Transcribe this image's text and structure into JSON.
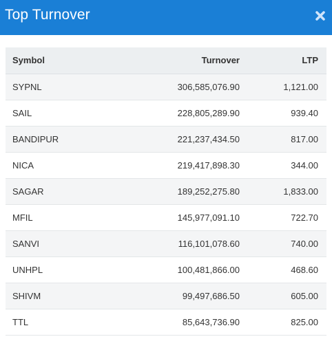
{
  "modal": {
    "title": "Top Turnover",
    "close_icon": "close-icon",
    "header_color": "#1a7fd6"
  },
  "table": {
    "columns": {
      "symbol": "Symbol",
      "turnover": "Turnover",
      "ltp": "LTP"
    },
    "rows": [
      {
        "symbol": "SYPNL",
        "turnover": "306,585,076.90",
        "ltp": "1,121.00"
      },
      {
        "symbol": "SAIL",
        "turnover": "228,805,289.90",
        "ltp": "939.40"
      },
      {
        "symbol": "BANDIPUR",
        "turnover": "221,237,434.50",
        "ltp": "817.00"
      },
      {
        "symbol": "NICA",
        "turnover": "219,417,898.30",
        "ltp": "344.00"
      },
      {
        "symbol": "SAGAR",
        "turnover": "189,252,275.80",
        "ltp": "1,833.00"
      },
      {
        "symbol": "MFIL",
        "turnover": "145,977,091.10",
        "ltp": "722.70"
      },
      {
        "symbol": "SANVI",
        "turnover": "116,101,078.60",
        "ltp": "740.00"
      },
      {
        "symbol": "UNHPL",
        "turnover": "100,481,866.00",
        "ltp": "468.60"
      },
      {
        "symbol": "SHIVM",
        "turnover": "99,497,686.50",
        "ltp": "605.00"
      },
      {
        "symbol": "TTL",
        "turnover": "85,643,736.90",
        "ltp": "825.00"
      }
    ]
  }
}
